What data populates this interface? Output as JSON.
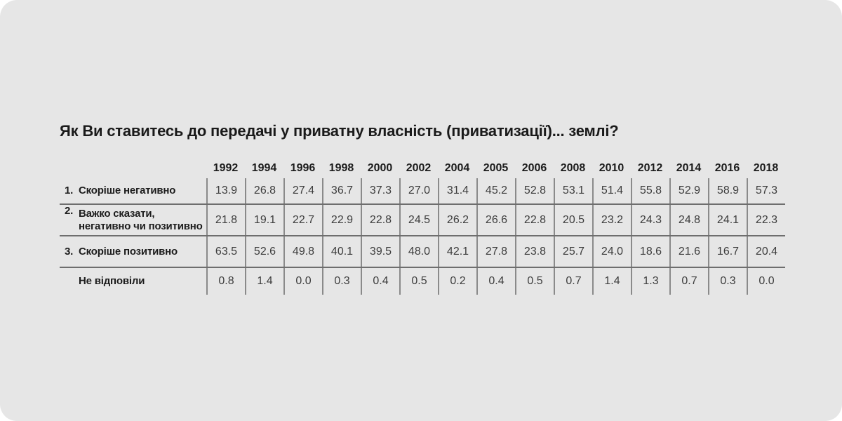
{
  "title": "Як Ви ставитесь до передачі у приватну власність (приватизації)... землі?",
  "chart_data": {
    "type": "table",
    "title": "Як Ви ставитесь до передачі у приватну власність (приватизації)... землі?",
    "categories": [
      "1992",
      "1994",
      "1996",
      "1998",
      "2000",
      "2002",
      "2004",
      "2005",
      "2006",
      "2008",
      "2010",
      "2012",
      "2014",
      "2016",
      "2018"
    ],
    "series": [
      {
        "number": "1.",
        "label": "Скоріше негативно",
        "values": [
          "13.9",
          "26.8",
          "27.4",
          "36.7",
          "37.3",
          "27.0",
          "31.4",
          "45.2",
          "52.8",
          "53.1",
          "51.4",
          "55.8",
          "52.9",
          "58.9",
          "57.3"
        ]
      },
      {
        "number": "2.",
        "label": "Важко сказати,\nнегативно чи позитивно",
        "values": [
          "21.8",
          "19.1",
          "22.7",
          "22.9",
          "22.8",
          "24.5",
          "26.2",
          "26.6",
          "22.8",
          "20.5",
          "23.2",
          "24.3",
          "24.8",
          "24.1",
          "22.3"
        ]
      },
      {
        "number": "3.",
        "label": "Скоріше позитивно",
        "values": [
          "63.5",
          "52.6",
          "49.8",
          "40.1",
          "39.5",
          "48.0",
          "42.1",
          "27.8",
          "23.8",
          "25.7",
          "24.0",
          "18.6",
          "21.6",
          "16.7",
          "20.4"
        ]
      },
      {
        "number": "",
        "label": "Не відповіли",
        "values": [
          "0.8",
          "1.4",
          "0.0",
          "0.3",
          "0.4",
          "0.5",
          "0.2",
          "0.4",
          "0.5",
          "0.7",
          "1.4",
          "1.3",
          "0.7",
          "0.3",
          "0.0"
        ]
      }
    ],
    "layout": {
      "grid": "horizontal-row-dividers",
      "legend": "none"
    }
  }
}
